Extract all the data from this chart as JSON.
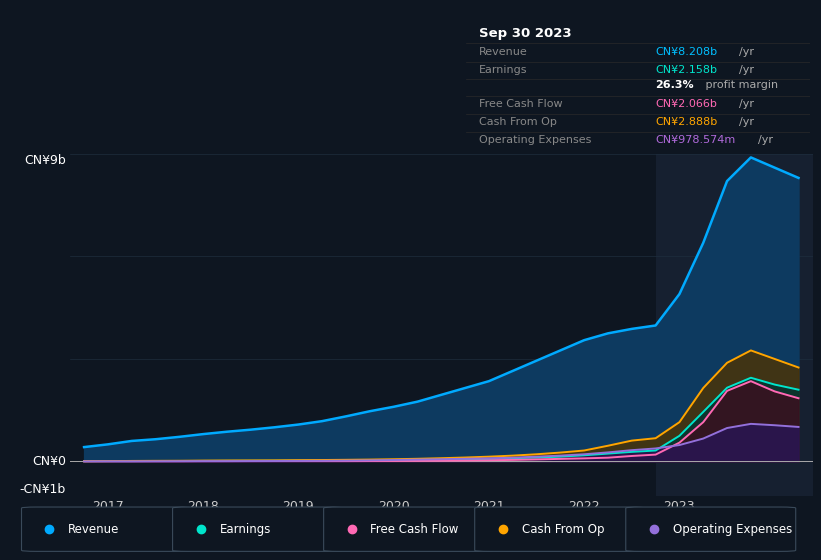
{
  "bg_color": "#0e1621",
  "plot_bg_color": "#0e1621",
  "highlight_bg": "#162030",
  "grid_color": "#1e2d3d",
  "zero_line_color": "#ffffff",
  "title_box_bg": "#080d14",
  "title_box": {
    "date": "Sep 30 2023",
    "rows": [
      {
        "label": "Revenue",
        "value": "CN¥8.208b",
        "unit": "/yr",
        "color": "#00bfff"
      },
      {
        "label": "Earnings",
        "value": "CN¥2.158b",
        "unit": "/yr",
        "color": "#00e5cc"
      },
      {
        "label": "",
        "value": "26.3%",
        "unit": " profit margin",
        "color": "#ffffff"
      },
      {
        "label": "Free Cash Flow",
        "value": "CN¥2.066b",
        "unit": "/yr",
        "color": "#ff69b4"
      },
      {
        "label": "Cash From Op",
        "value": "CN¥2.888b",
        "unit": "/yr",
        "color": "#ffa500"
      },
      {
        "label": "Operating Expenses",
        "value": "CN¥978.574m",
        "unit": "/yr",
        "color": "#b06adb"
      }
    ]
  },
  "ylim": [
    -1000000000.0,
    9000000000.0
  ],
  "xlim_start": 2016.6,
  "xlim_end": 2024.4,
  "xtick_years": [
    2017,
    2018,
    2019,
    2020,
    2021,
    2022,
    2023
  ],
  "highlight_x_start": 2022.75,
  "revenue_color": "#00aaff",
  "earnings_color": "#00e5cc",
  "fcf_color": "#ff69b4",
  "cashfromop_color": "#ffa500",
  "opex_color": "#9370db",
  "x": [
    2016.75,
    2017.0,
    2017.25,
    2017.5,
    2017.75,
    2018.0,
    2018.25,
    2018.5,
    2018.75,
    2019.0,
    2019.25,
    2019.5,
    2019.75,
    2020.0,
    2020.25,
    2020.5,
    2020.75,
    2021.0,
    2021.25,
    2021.5,
    2021.75,
    2022.0,
    2022.25,
    2022.5,
    2022.75,
    2023.0,
    2023.25,
    2023.5,
    2023.75,
    2024.0,
    2024.25
  ],
  "revenue": [
    420000000.0,
    500000000.0,
    600000000.0,
    650000000.0,
    720000000.0,
    800000000.0,
    870000000.0,
    930000000.0,
    1000000000.0,
    1080000000.0,
    1180000000.0,
    1320000000.0,
    1470000000.0,
    1600000000.0,
    1750000000.0,
    1950000000.0,
    2150000000.0,
    2350000000.0,
    2650000000.0,
    2950000000.0,
    3250000000.0,
    3550000000.0,
    3750000000.0,
    3880000000.0,
    3980000000.0,
    4900000000.0,
    6400000000.0,
    8208000000.0,
    8900000000.0,
    8600000000.0,
    8300000000.0
  ],
  "earnings": [
    8000000.0,
    10000000.0,
    10000000.0,
    12000000.0,
    13000000.0,
    15000000.0,
    17000000.0,
    18000000.0,
    20000000.0,
    22000000.0,
    25000000.0,
    28000000.0,
    32000000.0,
    38000000.0,
    45000000.0,
    55000000.0,
    65000000.0,
    75000000.0,
    95000000.0,
    115000000.0,
    140000000.0,
    180000000.0,
    230000000.0,
    280000000.0,
    320000000.0,
    750000000.0,
    1450000000.0,
    2158000000.0,
    2450000000.0,
    2250000000.0,
    2100000000.0
  ],
  "fcf": [
    3000000.0,
    4000000.0,
    4000000.0,
    5000000.0,
    5000000.0,
    7000000.0,
    8000000.0,
    9000000.0,
    10000000.0,
    10000000.0,
    10000000.0,
    10000000.0,
    12000000.0,
    15000000.0,
    18000000.0,
    22000000.0,
    28000000.0,
    35000000.0,
    45000000.0,
    60000000.0,
    75000000.0,
    90000000.0,
    110000000.0,
    160000000.0,
    200000000.0,
    550000000.0,
    1150000000.0,
    2066000000.0,
    2350000000.0,
    2050000000.0,
    1850000000.0
  ],
  "cashfromop": [
    8000000.0,
    10000000.0,
    15000000.0,
    18000000.0,
    20000000.0,
    25000000.0,
    28000000.0,
    30000000.0,
    32000000.0,
    38000000.0,
    42000000.0,
    48000000.0,
    55000000.0,
    65000000.0,
    78000000.0,
    95000000.0,
    115000000.0,
    140000000.0,
    170000000.0,
    210000000.0,
    260000000.0,
    320000000.0,
    460000000.0,
    610000000.0,
    680000000.0,
    1150000000.0,
    2150000000.0,
    2888000000.0,
    3250000000.0,
    3000000000.0,
    2750000000.0
  ],
  "opex": [
    4000000.0,
    5000000.0,
    5000000.0,
    6000000.0,
    8000000.0,
    10000000.0,
    10000000.0,
    12000000.0,
    13000000.0,
    16000000.0,
    19000000.0,
    25000000.0,
    32000000.0,
    42000000.0,
    55000000.0,
    65000000.0,
    78000000.0,
    92000000.0,
    110000000.0,
    140000000.0,
    170000000.0,
    210000000.0,
    265000000.0,
    330000000.0,
    380000000.0,
    480000000.0,
    670000000.0,
    978574000.0,
    1100000000.0,
    1060000000.0,
    1010000000.0
  ],
  "legend": [
    {
      "label": "Revenue",
      "color": "#00aaff"
    },
    {
      "label": "Earnings",
      "color": "#00e5cc"
    },
    {
      "label": "Free Cash Flow",
      "color": "#ff69b4"
    },
    {
      "label": "Cash From Op",
      "color": "#ffa500"
    },
    {
      "label": "Operating Expenses",
      "color": "#9370db"
    }
  ]
}
